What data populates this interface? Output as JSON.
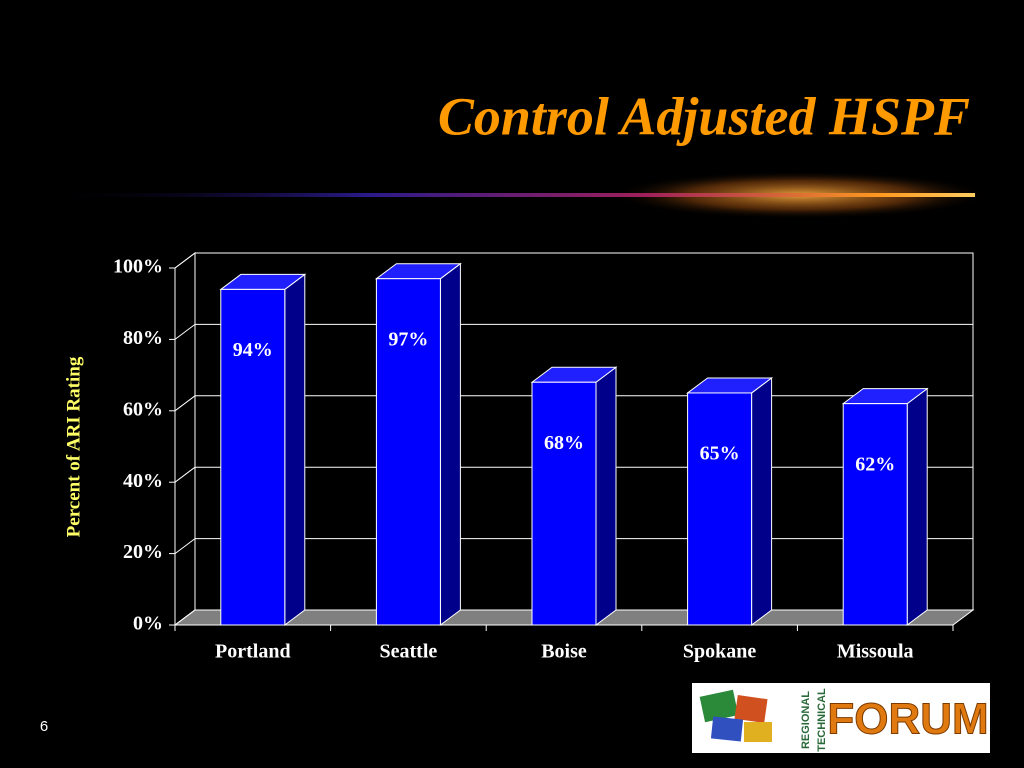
{
  "chart_data": {
    "type": "bar3d",
    "title": "Control Adjusted HSPF",
    "y_label": "Percent of ARI Rating",
    "categories": [
      "Portland",
      "Seattle",
      "Boise",
      "Spokane",
      "Missoula"
    ],
    "values": [
      94,
      97,
      68,
      65,
      62
    ],
    "value_labels": [
      "94%",
      "97%",
      "68%",
      "65%",
      "62%"
    ],
    "color": "#0000ff",
    "ylim": [
      0,
      100
    ],
    "yticks": [
      {
        "value": 0,
        "label": "0%"
      },
      {
        "value": 20,
        "label": "20%"
      },
      {
        "value": 40,
        "label": "40%"
      },
      {
        "value": 60,
        "label": "60%"
      },
      {
        "value": 80,
        "label": "80%"
      },
      {
        "value": 100,
        "label": "100%"
      }
    ],
    "grid": true
  },
  "slide_number": "6",
  "logo": {
    "top": "REGIONAL",
    "middle": "TECHNICAL",
    "word": "FORUM"
  }
}
